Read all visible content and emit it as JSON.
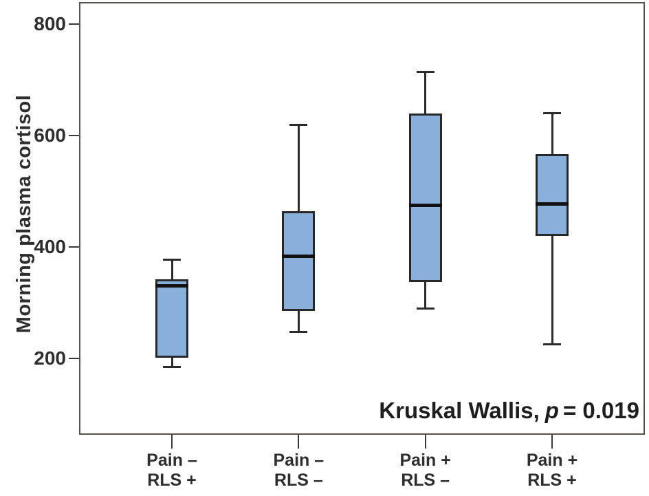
{
  "chart_data": {
    "type": "boxplot",
    "title": "",
    "xlabel": "",
    "ylabel": "Morning plasma cortisol",
    "y_axis": {
      "ticks": [
        800,
        600,
        400,
        200
      ],
      "range": [
        63,
        840
      ],
      "grid": false
    },
    "categories": [
      [
        "Pain –",
        "RLS +"
      ],
      [
        "Pain –",
        "RLS –"
      ],
      [
        "Pain +",
        "RLS –"
      ],
      [
        "Pain +",
        "RLS +"
      ]
    ],
    "series": [
      {
        "name": "Pain – / RLS +",
        "whisker_low": 185,
        "q1": 201,
        "median": 330,
        "q3": 342,
        "whisker_high": 378
      },
      {
        "name": "Pain – / RLS –",
        "whisker_low": 248,
        "q1": 285,
        "median": 383,
        "q3": 465,
        "whisker_high": 620
      },
      {
        "name": "Pain + / RLS –",
        "whisker_low": 290,
        "q1": 337,
        "median": 475,
        "q3": 640,
        "whisker_high": 715
      },
      {
        "name": "Pain + / RLS +",
        "whisker_low": 225,
        "q1": 420,
        "median": 478,
        "q3": 567,
        "whisker_high": 640
      }
    ],
    "annotation": {
      "prefix": "Kruskal Wallis,",
      "stat_symbol": "p",
      "value_text": "= 0.019"
    },
    "colors": {
      "box_fill": "#88b0da",
      "box_border": "#26282a",
      "median": "#111111",
      "whisker": "#2b2b2b",
      "frame": "#57534f",
      "text": "#2e2e2e"
    }
  }
}
